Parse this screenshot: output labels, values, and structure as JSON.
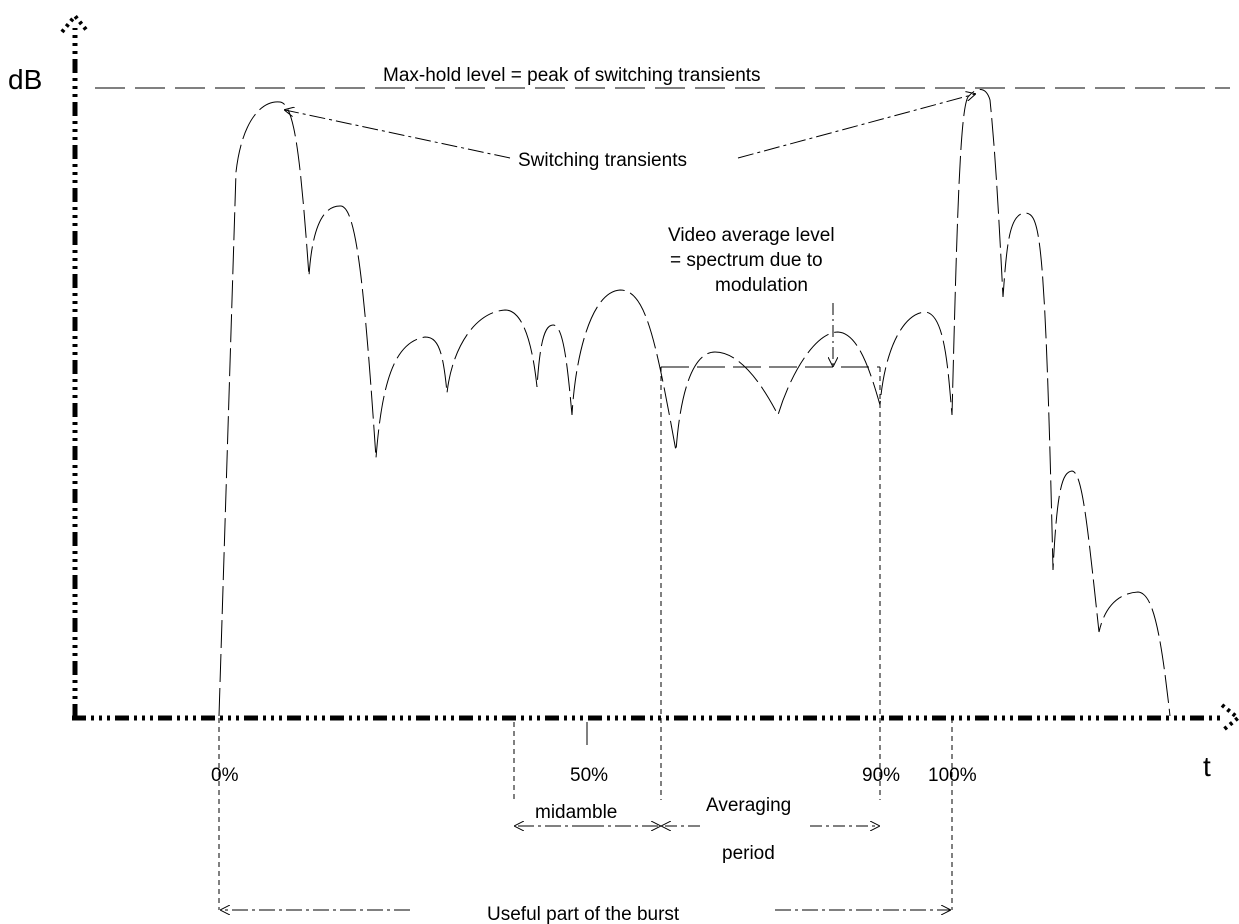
{
  "axes": {
    "y_label": "dB",
    "x_label": "t"
  },
  "annotations": {
    "max_hold": "Max-hold level = peak of switching transients",
    "switching": "Switching transients",
    "video_avg_line1": "Video average level",
    "video_avg_line2": "= spectrum due to",
    "video_avg_line3": "modulation",
    "midamble": "midamble",
    "averaging_line1": "Averaging",
    "averaging_line2": "period",
    "useful": "Useful part of the burst"
  },
  "ticks": {
    "p0": "0%",
    "p50": "50%",
    "p90": "90%",
    "p100": "100%"
  },
  "colors": {
    "ink": "#000000",
    "background": "#ffffff"
  }
}
